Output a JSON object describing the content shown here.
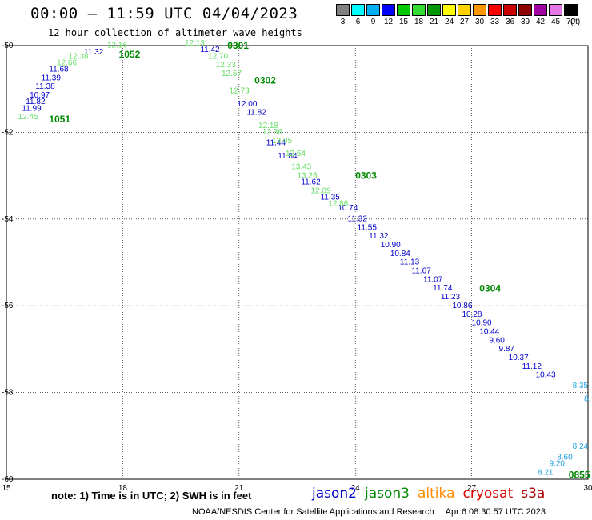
{
  "header": {
    "title": "00:00 – 11:59 UTC 04/04/2023",
    "subtitle": "12 hour collection of altimeter wave heights"
  },
  "colorbar": {
    "unit": "(ft)",
    "bins": [
      {
        "label": "3",
        "color": "#808080"
      },
      {
        "label": "6",
        "color": "#00ffff"
      },
      {
        "label": "9",
        "color": "#00b0f0"
      },
      {
        "label": "12",
        "color": "#0000ff"
      },
      {
        "label": "15",
        "color": "#00c800"
      },
      {
        "label": "18",
        "color": "#32dc32"
      },
      {
        "label": "21",
        "color": "#009600"
      },
      {
        "label": "24",
        "color": "#ffff00"
      },
      {
        "label": "27",
        "color": "#ffd200"
      },
      {
        "label": "30",
        "color": "#ff9600"
      },
      {
        "label": "33",
        "color": "#ff0000"
      },
      {
        "label": "36",
        "color": "#c80000"
      },
      {
        "label": "39",
        "color": "#8c0000"
      },
      {
        "label": "42",
        "color": "#a000a0"
      },
      {
        "label": "45",
        "color": "#e678e6"
      },
      {
        "label": "70",
        "color": "#000000"
      }
    ]
  },
  "chart_data": {
    "type": "scatter",
    "title": "00:00 – 11:59 UTC 04/04/2023",
    "subtitle": "12 hour collection of altimeter wave heights",
    "xlim": [
      15,
      30
    ],
    "ylim": [
      -60,
      -50
    ],
    "xticks": [
      "15",
      "18",
      "21",
      "24",
      "27",
      "30"
    ],
    "yticks": [
      "-50",
      "-52",
      "-54",
      "-56",
      "-58",
      "-60"
    ],
    "grid": true,
    "colors": {
      "jason2": "#0000cc",
      "jason3": "#008800",
      "jason3_light": "#66dd66",
      "altika": "#ff8c00",
      "cryosat": "#dd0000",
      "s3a": "#aa0000",
      "cyan": "#1ea0dc"
    },
    "pass_labels": [
      {
        "text": "1051",
        "x": 16.1,
        "y": -51.7
      },
      {
        "text": "1052",
        "x": 17.9,
        "y": -50.2
      },
      {
        "text": "0301",
        "x": 20.7,
        "y": -50.0
      },
      {
        "text": "0302",
        "x": 21.4,
        "y": -50.8
      },
      {
        "text": "0303",
        "x": 24.0,
        "y": -53.0
      },
      {
        "text": "0304",
        "x": 27.2,
        "y": -55.6
      },
      {
        "text": "0855",
        "x": 29.5,
        "y": -59.9
      }
    ],
    "series": [
      {
        "name": "jason2",
        "color": "#0000cc",
        "points": [
          {
            "x": 15.4,
            "y": -51.5,
            "v": "11.99"
          },
          {
            "x": 15.5,
            "y": -51.35,
            "v": "11.82"
          },
          {
            "x": 15.6,
            "y": -51.2,
            "v": "10.97"
          },
          {
            "x": 15.75,
            "y": -51.0,
            "v": "11.38"
          },
          {
            "x": 15.9,
            "y": -50.8,
            "v": "11.39"
          },
          {
            "x": 16.1,
            "y": -50.6,
            "v": "11.68"
          },
          {
            "x": 17.0,
            "y": -50.2,
            "v": "11.32"
          },
          {
            "x": 20.0,
            "y": -50.15,
            "v": "11.42"
          },
          {
            "x": 20.95,
            "y": -51.4,
            "v": "12.00"
          },
          {
            "x": 21.2,
            "y": -51.6,
            "v": "11.82"
          },
          {
            "x": 21.7,
            "y": -52.3,
            "v": "11.44"
          },
          {
            "x": 22.0,
            "y": -52.6,
            "v": "11.84"
          },
          {
            "x": 22.6,
            "y": -53.2,
            "v": "11.62"
          },
          {
            "x": 23.1,
            "y": -53.55,
            "v": "11.35"
          },
          {
            "x": 23.55,
            "y": -53.8,
            "v": "10.74"
          },
          {
            "x": 23.8,
            "y": -54.05,
            "v": "11.32"
          },
          {
            "x": 24.05,
            "y": -54.25,
            "v": "11.55"
          },
          {
            "x": 24.35,
            "y": -54.45,
            "v": "11.32"
          },
          {
            "x": 24.65,
            "y": -54.65,
            "v": "10.90"
          },
          {
            "x": 24.9,
            "y": -54.85,
            "v": "10.84"
          },
          {
            "x": 25.15,
            "y": -55.05,
            "v": "11.13"
          },
          {
            "x": 25.45,
            "y": -55.25,
            "v": "11.67"
          },
          {
            "x": 25.75,
            "y": -55.45,
            "v": "11.07"
          },
          {
            "x": 26.0,
            "y": -55.65,
            "v": "11.74"
          },
          {
            "x": 26.2,
            "y": -55.85,
            "v": "11.23"
          },
          {
            "x": 26.5,
            "y": -56.05,
            "v": "10.86"
          },
          {
            "x": 26.75,
            "y": -56.25,
            "v": "10.28"
          },
          {
            "x": 27.0,
            "y": -56.45,
            "v": "10.90"
          },
          {
            "x": 27.2,
            "y": -56.65,
            "v": "10.44"
          },
          {
            "x": 27.45,
            "y": -56.85,
            "v": "9.60"
          },
          {
            "x": 27.7,
            "y": -57.05,
            "v": "9.87"
          },
          {
            "x": 27.95,
            "y": -57.25,
            "v": "10.37"
          },
          {
            "x": 28.3,
            "y": -57.45,
            "v": "11.12"
          },
          {
            "x": 28.65,
            "y": -57.65,
            "v": "10.43"
          }
        ]
      },
      {
        "name": "jason3",
        "color": "#66dd66",
        "points": [
          {
            "x": 15.3,
            "y": -51.7,
            "v": "12.45"
          },
          {
            "x": 16.3,
            "y": -50.45,
            "v": "12.66"
          },
          {
            "x": 16.6,
            "y": -50.3,
            "v": "12.38"
          },
          {
            "x": 17.6,
            "y": -50.05,
            "v": "12.16"
          },
          {
            "x": 19.6,
            "y": -50.0,
            "v": "12.13"
          },
          {
            "x": 20.2,
            "y": -50.3,
            "v": "12.70"
          },
          {
            "x": 20.4,
            "y": -50.5,
            "v": "12.33"
          },
          {
            "x": 20.55,
            "y": -50.7,
            "v": "12.57"
          },
          {
            "x": 20.75,
            "y": -51.1,
            "v": "12.73"
          },
          {
            "x": 21.5,
            "y": -51.9,
            "v": "12.18"
          },
          {
            "x": 21.6,
            "y": -52.05,
            "v": "12.36"
          },
          {
            "x": 21.85,
            "y": -52.25,
            "v": "13.05"
          },
          {
            "x": 22.2,
            "y": -52.55,
            "v": "12.54"
          },
          {
            "x": 22.35,
            "y": -52.85,
            "v": "13.43"
          },
          {
            "x": 22.5,
            "y": -53.05,
            "v": "13.26"
          },
          {
            "x": 22.85,
            "y": -53.4,
            "v": "12.09"
          },
          {
            "x": 23.3,
            "y": -53.7,
            "v": "12.86"
          }
        ]
      },
      {
        "name": "cyan",
        "color": "#1ea0dc",
        "points": [
          {
            "x": 29.6,
            "y": -57.9,
            "v": "8.35"
          },
          {
            "x": 29.9,
            "y": -58.2,
            "v": "8."
          },
          {
            "x": 28.7,
            "y": -59.9,
            "v": "8.21"
          },
          {
            "x": 29.0,
            "y": -59.7,
            "v": "9.20"
          },
          {
            "x": 29.2,
            "y": -59.55,
            "v": "8.60"
          },
          {
            "x": 29.6,
            "y": -59.3,
            "v": "8.24"
          }
        ]
      }
    ]
  },
  "legend": {
    "note": "note:  1) Time is in UTC;  2) SWH is in feet",
    "satellites": [
      {
        "name": "jason2",
        "color": "#0000cc"
      },
      {
        "name": "jason3",
        "color": "#008800"
      },
      {
        "name": "altika",
        "color": "#ff8c00"
      },
      {
        "name": "cryosat",
        "color": "#dd0000"
      },
      {
        "name": "s3a",
        "color": "#aa0000"
      }
    ]
  },
  "footer": {
    "credit": "NOAA/NESDIS Center for Satellite Applications and Research",
    "timestamp": "Apr  6 08:30:57 UTC 2023"
  }
}
